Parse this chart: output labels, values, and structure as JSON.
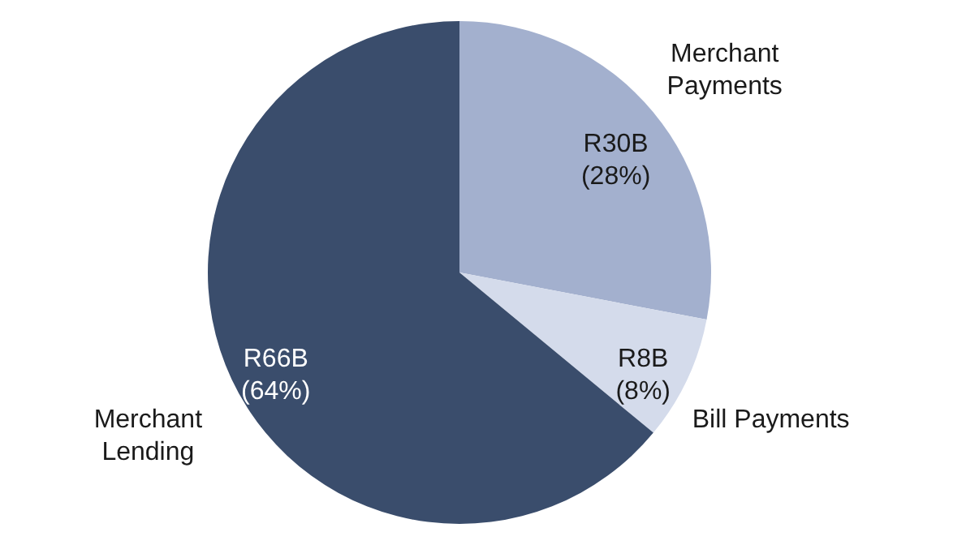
{
  "chart_data": {
    "type": "pie",
    "categories": [
      "Merchant Payments",
      "Bill Payments",
      "Merchant Lending"
    ],
    "values": [
      28,
      8,
      64
    ],
    "value_labels": [
      "R30B (28%)",
      "R8B (8%)",
      "R66B (64%)"
    ],
    "colors": [
      "#a3b0ce",
      "#d4dbeb",
      "#3a4d6c"
    ]
  }
}
